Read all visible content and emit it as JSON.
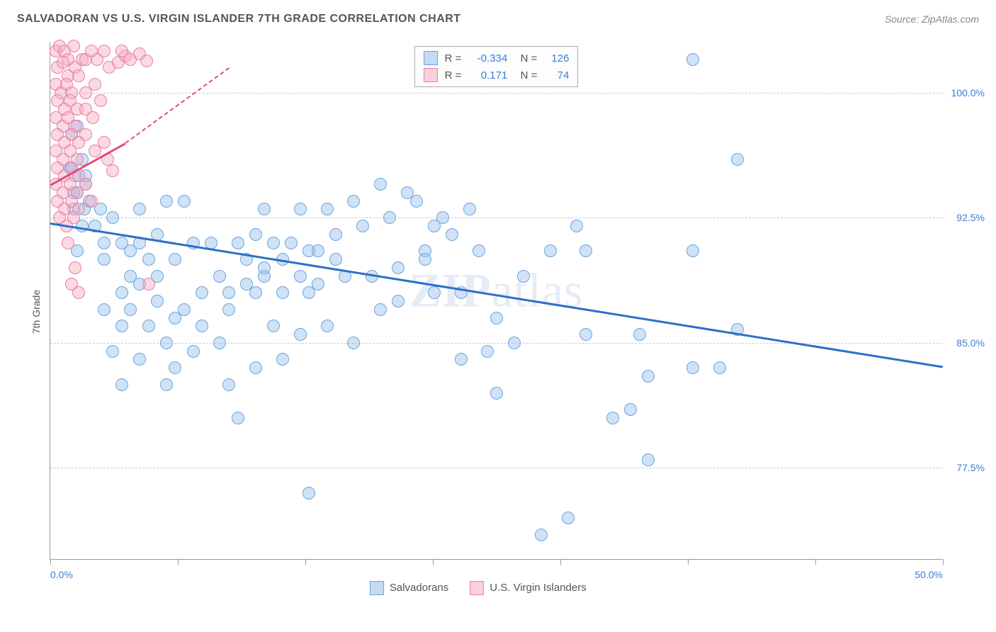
{
  "title": "SALVADORAN VS U.S. VIRGIN ISLANDER 7TH GRADE CORRELATION CHART",
  "source": "Source: ZipAtlas.com",
  "y_axis_title": "7th Grade",
  "watermark_zip": "ZIP",
  "watermark_atlas": "atlas",
  "chart": {
    "type": "scatter",
    "xlim": [
      0,
      50
    ],
    "ylim": [
      72,
      103
    ],
    "x_ticks": [
      0,
      7.14,
      14.28,
      21.42,
      28.57,
      35.71,
      42.85,
      50
    ],
    "x_tick_labels_shown": {
      "0": "0.0%",
      "50": "50.0%"
    },
    "y_gridlines": [
      77.5,
      85.0,
      92.5,
      100.0
    ],
    "y_tick_labels": [
      "77.5%",
      "85.0%",
      "92.5%",
      "100.0%"
    ],
    "background_color": "#ffffff",
    "grid_color": "#cccccc",
    "axis_color": "#999999",
    "tick_label_color": "#3b7dd8",
    "series": [
      {
        "name": "Salvadorans",
        "marker_fill": "rgba(150, 190, 235, 0.45)",
        "marker_stroke": "#6aa5de",
        "marker_radius": 9,
        "trend_color": "#2d6fc9",
        "trend_start": [
          0,
          92.2
        ],
        "trend_end": [
          50,
          83.6
        ],
        "R_label": "R =",
        "R": "-0.334",
        "N_label": "N =",
        "N": "126",
        "swatch_fill": "rgba(150, 190, 235, 0.55)",
        "swatch_stroke": "#6aa5de",
        "points": [
          [
            1.2,
            97.5
          ],
          [
            1.5,
            98.0
          ],
          [
            1.2,
            95.5
          ],
          [
            1.8,
            96.0
          ],
          [
            1.5,
            94.0
          ],
          [
            2.0,
            94.5
          ],
          [
            1.3,
            93.0
          ],
          [
            2.2,
            93.5
          ],
          [
            1.8,
            92.0
          ],
          [
            2.5,
            92.0
          ],
          [
            1.5,
            90.5
          ],
          [
            3.0,
            91.0
          ],
          [
            1.4,
            95.0
          ],
          [
            2.0,
            95.0
          ],
          [
            1.3,
            94.0
          ],
          [
            1.1,
            95.5
          ],
          [
            1.9,
            93.0
          ],
          [
            2.8,
            93.0
          ],
          [
            3.5,
            92.5
          ],
          [
            4.0,
            91.0
          ],
          [
            3.0,
            90.0
          ],
          [
            4.5,
            90.5
          ],
          [
            5.0,
            91.0
          ],
          [
            4.5,
            89.0
          ],
          [
            5.5,
            90.0
          ],
          [
            6.0,
            91.5
          ],
          [
            5.0,
            93.0
          ],
          [
            6.5,
            93.5
          ],
          [
            7.5,
            93.5
          ],
          [
            4.0,
            88.0
          ],
          [
            5.0,
            88.5
          ],
          [
            6.0,
            89.0
          ],
          [
            7.0,
            90.0
          ],
          [
            8.0,
            91.0
          ],
          [
            9.0,
            91.0
          ],
          [
            3.0,
            87.0
          ],
          [
            4.5,
            87.0
          ],
          [
            6.0,
            87.5
          ],
          [
            7.5,
            87.0
          ],
          [
            8.5,
            88.0
          ],
          [
            9.5,
            89.0
          ],
          [
            4.0,
            86.0
          ],
          [
            5.5,
            86.0
          ],
          [
            7.0,
            86.5
          ],
          [
            8.5,
            86.0
          ],
          [
            10.0,
            87.0
          ],
          [
            11.0,
            88.5
          ],
          [
            3.5,
            84.5
          ],
          [
            5.0,
            84.0
          ],
          [
            6.5,
            85.0
          ],
          [
            8.0,
            84.5
          ],
          [
            9.5,
            85.0
          ],
          [
            12.0,
            89.0
          ],
          [
            4.0,
            82.5
          ],
          [
            6.5,
            82.5
          ],
          [
            10.0,
            82.5
          ],
          [
            7.0,
            83.5
          ],
          [
            10.5,
            91.0
          ],
          [
            11.5,
            91.5
          ],
          [
            12.5,
            91.0
          ],
          [
            13.5,
            91.0
          ],
          [
            14.5,
            90.5
          ],
          [
            11.0,
            90.0
          ],
          [
            12.0,
            89.5
          ],
          [
            13.0,
            90.0
          ],
          [
            14.0,
            89.0
          ],
          [
            15.0,
            90.5
          ],
          [
            10.0,
            88.0
          ],
          [
            11.5,
            88.0
          ],
          [
            13.0,
            88.0
          ],
          [
            14.5,
            88.0
          ],
          [
            16.0,
            90.0
          ],
          [
            12.0,
            93.0
          ],
          [
            14.0,
            93.0
          ],
          [
            15.5,
            93.0
          ],
          [
            17.0,
            93.5
          ],
          [
            18.5,
            94.5
          ],
          [
            16.0,
            91.5
          ],
          [
            17.5,
            92.0
          ],
          [
            19.0,
            92.5
          ],
          [
            20.5,
            93.5
          ],
          [
            22.0,
            92.5
          ],
          [
            15.0,
            88.5
          ],
          [
            16.5,
            89.0
          ],
          [
            18.0,
            89.0
          ],
          [
            19.5,
            89.5
          ],
          [
            21.0,
            90.5
          ],
          [
            12.5,
            86.0
          ],
          [
            14.0,
            85.5
          ],
          [
            15.5,
            86.0
          ],
          [
            17.0,
            85.0
          ],
          [
            18.5,
            87.0
          ],
          [
            13.0,
            84.0
          ],
          [
            11.5,
            83.5
          ],
          [
            19.5,
            87.5
          ],
          [
            21.5,
            88.0
          ],
          [
            20.0,
            94.0
          ],
          [
            21.5,
            92.0
          ],
          [
            21.0,
            90.0
          ],
          [
            22.5,
            91.5
          ],
          [
            23.5,
            93.0
          ],
          [
            23.0,
            88.0
          ],
          [
            24.0,
            90.5
          ],
          [
            25.0,
            86.5
          ],
          [
            24.5,
            84.5
          ],
          [
            26.0,
            85.0
          ],
          [
            23.0,
            84.0
          ],
          [
            26.5,
            89.0
          ],
          [
            28.0,
            90.5
          ],
          [
            30.0,
            90.5
          ],
          [
            29.5,
            92.0
          ],
          [
            30.0,
            85.5
          ],
          [
            31.5,
            80.5
          ],
          [
            32.5,
            81.0
          ],
          [
            33.5,
            83.0
          ],
          [
            33.0,
            85.5
          ],
          [
            36.0,
            83.5
          ],
          [
            37.5,
            83.5
          ],
          [
            36.0,
            90.5
          ],
          [
            38.5,
            85.8
          ],
          [
            36.0,
            102.0
          ],
          [
            38.5,
            96.0
          ],
          [
            33.5,
            78.0
          ],
          [
            27.5,
            73.5
          ],
          [
            25.0,
            82.0
          ],
          [
            29.0,
            74.5
          ],
          [
            14.5,
            76.0
          ],
          [
            10.5,
            80.5
          ]
        ]
      },
      {
        "name": "U.S. Virgin Islanders",
        "marker_fill": "rgba(245, 170, 195, 0.45)",
        "marker_stroke": "#e8809f",
        "marker_radius": 9,
        "trend_color": "#e54b7a",
        "trend_start": [
          0,
          94.5
        ],
        "trend_solid_end": [
          4.2,
          97.0
        ],
        "trend_dash_end": [
          10.0,
          101.5
        ],
        "R_label": "R =",
        "R": "0.171",
        "N_label": "N =",
        "N": "74",
        "swatch_fill": "rgba(245, 170, 195, 0.55)",
        "swatch_stroke": "#e8809f",
        "points": [
          [
            0.3,
            102.5
          ],
          [
            0.5,
            102.8
          ],
          [
            0.8,
            102.5
          ],
          [
            1.0,
            102.0
          ],
          [
            1.3,
            102.8
          ],
          [
            0.4,
            101.5
          ],
          [
            0.7,
            101.8
          ],
          [
            1.0,
            101.0
          ],
          [
            1.4,
            101.5
          ],
          [
            1.8,
            102.0
          ],
          [
            0.3,
            100.5
          ],
          [
            0.6,
            100.0
          ],
          [
            0.9,
            100.5
          ],
          [
            1.2,
            100.0
          ],
          [
            1.6,
            101.0
          ],
          [
            0.4,
            99.5
          ],
          [
            0.8,
            99.0
          ],
          [
            1.1,
            99.5
          ],
          [
            1.5,
            99.0
          ],
          [
            2.0,
            102.0
          ],
          [
            0.3,
            98.5
          ],
          [
            0.7,
            98.0
          ],
          [
            1.0,
            98.5
          ],
          [
            1.4,
            98.0
          ],
          [
            2.3,
            102.5
          ],
          [
            0.4,
            97.5
          ],
          [
            0.8,
            97.0
          ],
          [
            1.2,
            97.5
          ],
          [
            1.6,
            97.0
          ],
          [
            2.6,
            102.0
          ],
          [
            0.3,
            96.5
          ],
          [
            0.7,
            96.0
          ],
          [
            1.1,
            96.5
          ],
          [
            1.5,
            96.0
          ],
          [
            3.0,
            102.5
          ],
          [
            0.4,
            95.5
          ],
          [
            0.8,
            95.0
          ],
          [
            1.2,
            95.5
          ],
          [
            1.6,
            95.0
          ],
          [
            3.3,
            101.5
          ],
          [
            0.3,
            94.5
          ],
          [
            0.7,
            94.0
          ],
          [
            1.1,
            94.5
          ],
          [
            1.5,
            94.0
          ],
          [
            3.8,
            101.8
          ],
          [
            0.4,
            93.5
          ],
          [
            0.8,
            93.0
          ],
          [
            1.2,
            93.5
          ],
          [
            1.6,
            93.0
          ],
          [
            4.2,
            102.2
          ],
          [
            0.5,
            92.5
          ],
          [
            0.9,
            92.0
          ],
          [
            1.3,
            92.5
          ],
          [
            2.0,
            100.0
          ],
          [
            2.5,
            100.5
          ],
          [
            2.0,
            99.0
          ],
          [
            2.4,
            98.5
          ],
          [
            2.8,
            99.5
          ],
          [
            3.2,
            96.0
          ],
          [
            3.5,
            95.3
          ],
          [
            2.0,
            97.5
          ],
          [
            2.5,
            96.5
          ],
          [
            3.0,
            97.0
          ],
          [
            4.0,
            102.5
          ],
          [
            4.5,
            102.0
          ],
          [
            5.0,
            102.3
          ],
          [
            5.4,
            101.9
          ],
          [
            2.0,
            94.5
          ],
          [
            2.3,
            93.5
          ],
          [
            1.2,
            88.5
          ],
          [
            1.6,
            88.0
          ],
          [
            1.0,
            91.0
          ],
          [
            5.5,
            88.5
          ],
          [
            1.4,
            89.5
          ]
        ]
      }
    ]
  }
}
